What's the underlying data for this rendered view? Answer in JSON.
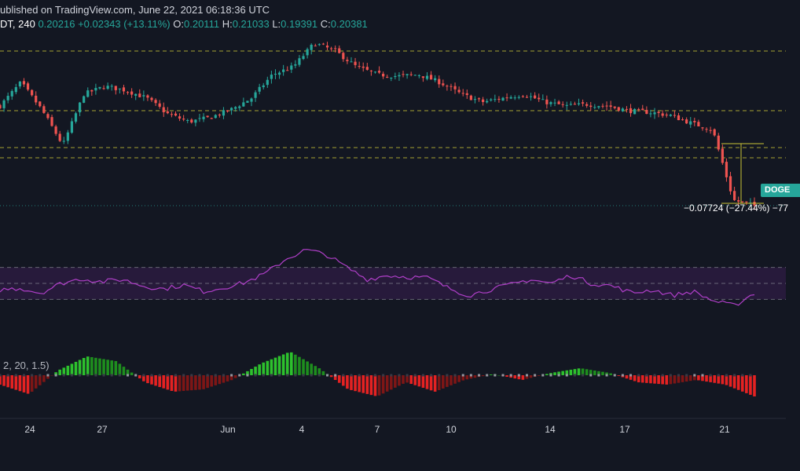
{
  "header": {
    "published": "ublished on TradingView.com, June 22, 2021 06:18:36 UTC",
    "symbol": "DT, 240",
    "last": "0.20216",
    "change": "+0.02343 (+13.11%)",
    "o_label": "O:",
    "o_value": "0.20111",
    "h_label": "H:",
    "h_value": "0.21033",
    "l_label": "L:",
    "l_value": "0.19391",
    "c_label": "C:",
    "c_value": "0.20381"
  },
  "price_tag": "DOGE",
  "measure_label": "−0.07724 (−27.44%) −77",
  "squeeze_label": "2, 20, 1.5)",
  "colors": {
    "background": "#131722",
    "bull": "#26a69a",
    "bear": "#ef5350",
    "level_line": "#c9c335",
    "rsi": "#b03fc9",
    "rsi_band": "#2b1b3f",
    "hist_green": "#2dc12d",
    "hist_green_dark": "#1e8e1e",
    "hist_red": "#e52222",
    "hist_red_dark": "#7e1616"
  },
  "chart_data": {
    "type": "candlestick",
    "x_tick_labels": [
      "24",
      "27",
      "Jun",
      "4",
      "7",
      "10",
      "14",
      "17",
      "21"
    ],
    "price_levels": [
      0.4,
      0.324,
      0.277,
      0.264
    ],
    "price_range": [
      0.17,
      0.42
    ],
    "close_path": [
      0.33,
      0.36,
      0.325,
      0.28,
      0.345,
      0.355,
      0.35,
      0.34,
      0.32,
      0.31,
      0.315,
      0.325,
      0.34,
      0.37,
      0.38,
      0.41,
      0.4,
      0.38,
      0.37,
      0.368,
      0.37,
      0.36,
      0.345,
      0.335,
      0.34,
      0.345,
      0.335,
      0.33,
      0.332,
      0.33,
      0.324,
      0.322,
      0.318,
      0.308,
      0.3,
      0.21,
      0.203
    ],
    "rsi": {
      "range": [
        0,
        100
      ],
      "upper_band": 70,
      "mid_line": 50,
      "lower_band": 30,
      "values": [
        42,
        44,
        38,
        50,
        56,
        52,
        55,
        47,
        43,
        48,
        40,
        45,
        51,
        62,
        80,
        92,
        86,
        70,
        55,
        60,
        58,
        57,
        44,
        35,
        42,
        48,
        55,
        50,
        60,
        50,
        47,
        38,
        42,
        35,
        40,
        28,
        22,
        38
      ]
    },
    "squeeze": {
      "values": [
        -0.4,
        -0.8,
        0.2,
        0.8,
        0.6,
        -0.3,
        -0.7,
        -0.6,
        -0.2,
        0.5,
        1.0,
        0.3,
        -0.6,
        -0.9,
        -0.3,
        -0.7,
        -0.2,
        0.05,
        -0.2,
        0.1,
        0.3,
        0.1,
        -0.3,
        -0.4,
        -0.2,
        -0.4,
        -0.9
      ]
    }
  }
}
